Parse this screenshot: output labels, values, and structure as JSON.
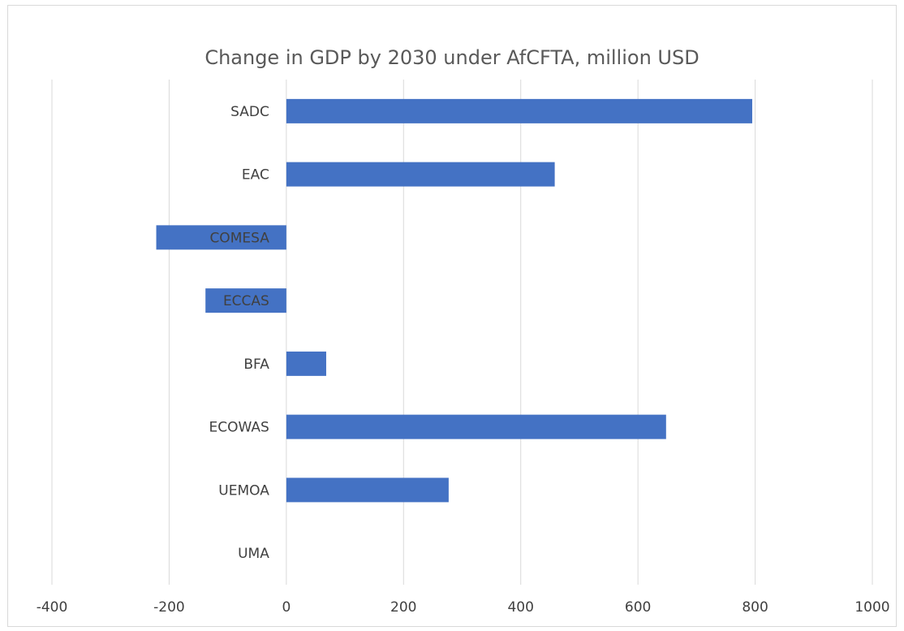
{
  "chart_data": {
    "type": "bar",
    "orientation": "horizontal",
    "title": "Change in GDP by 2030 under AfCFTA, million USD",
    "categories": [
      "SADC",
      "EAC",
      "COMESA",
      "ECCAS",
      "BFA",
      "ECOWAS",
      "UEMOA",
      "UMA"
    ],
    "values": [
      795,
      458,
      -222,
      -138,
      68,
      648,
      277,
      0
    ],
    "xlim": [
      -400,
      1000
    ],
    "xticks": [
      -400,
      -200,
      0,
      200,
      400,
      600,
      800,
      1000
    ],
    "xtick_labels": [
      "-400",
      "-200",
      "0",
      "200",
      "400",
      "600",
      "800",
      "1000"
    ],
    "grid": true,
    "legend": "none",
    "bar_color": "#4472c4",
    "grid_color": "#d9d9d9",
    "text_color": "#404040"
  }
}
